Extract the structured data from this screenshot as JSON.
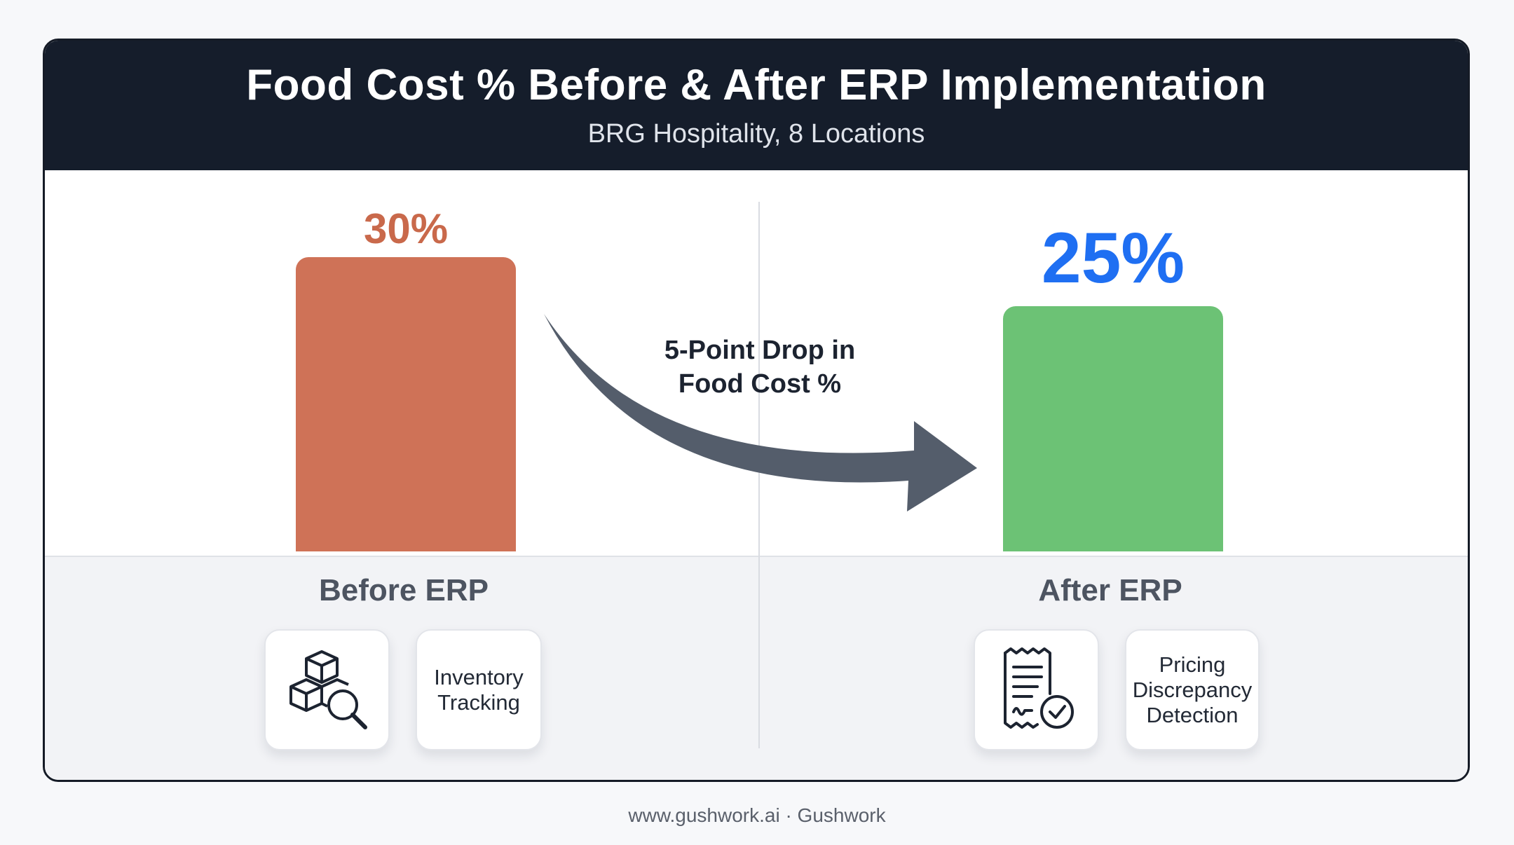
{
  "header": {
    "title": "Food Cost % Before & After ERP Implementation",
    "subtitle": "BRG Hospitality, 8 Locations"
  },
  "chart_data": {
    "type": "bar",
    "title": "Food Cost % Before & After ERP Implementation",
    "subtitle": "BRG Hospitality, 8 Locations",
    "categories": [
      "Before ERP",
      "After ERP"
    ],
    "values": [
      30,
      25
    ],
    "value_labels": [
      "30%",
      "25%"
    ],
    "colors": [
      "#cf7257",
      "#6cc275"
    ],
    "value_label_colors": [
      "#c9694b",
      "#1f6ff2"
    ],
    "annotation": "5-Point Drop in\nFood Cost %",
    "xlabel": "",
    "ylabel": "",
    "grid": false
  },
  "groups": [
    {
      "label": "Before ERP",
      "icon": "boxes-magnifier-icon",
      "tile_text": "Inventory\nTracking"
    },
    {
      "label": "After ERP",
      "icon": "receipt-check-icon",
      "tile_text": "Pricing\nDiscrepancy\nDetection"
    }
  ],
  "footer": "www.gushwork.ai · Gushwork",
  "colors": {
    "header_bg": "#151d2b",
    "arrow": "#545d6b"
  }
}
